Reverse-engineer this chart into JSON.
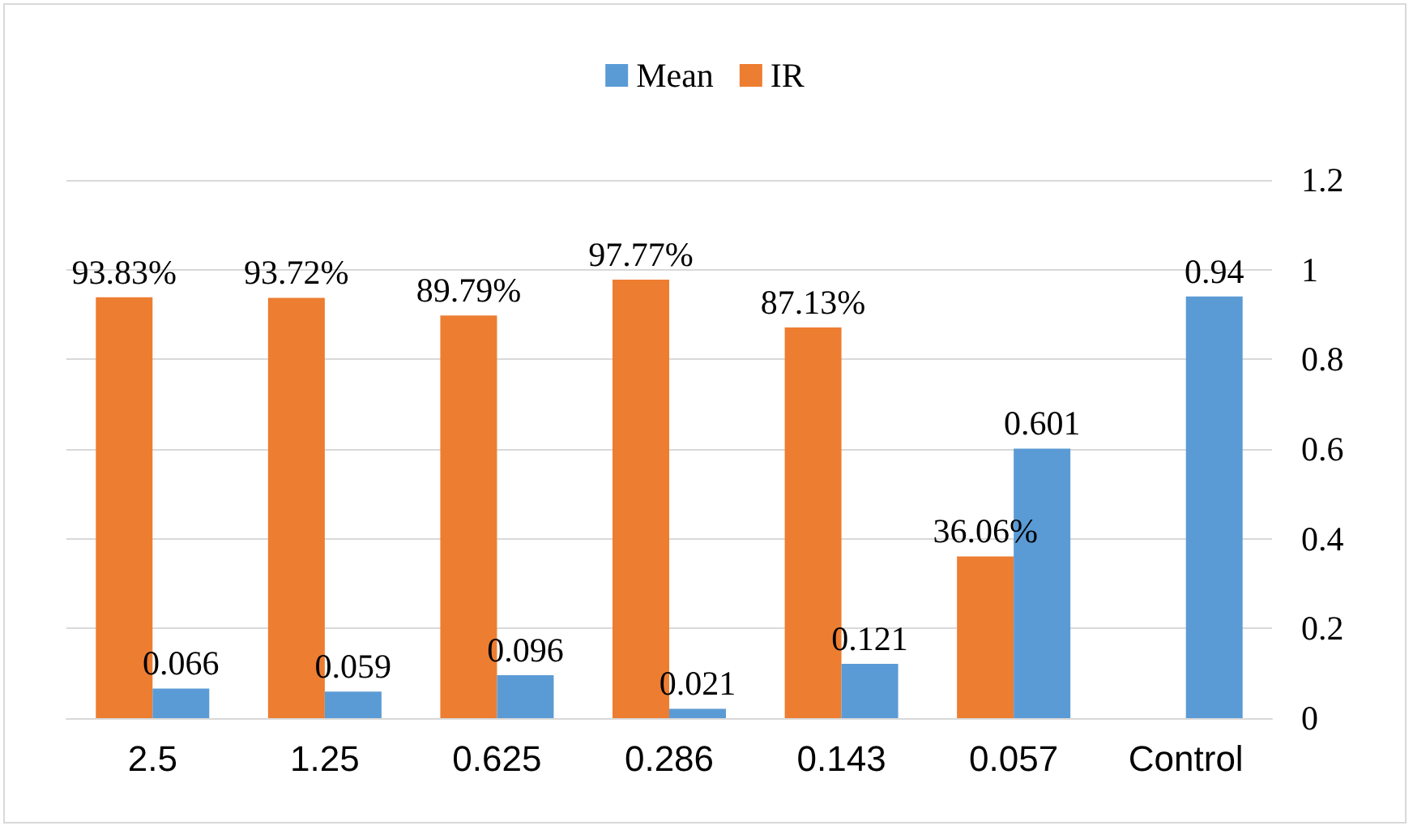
{
  "chart_data": {
    "type": "bar",
    "categories": [
      "2.5",
      "1.25",
      "0.625",
      "0.286",
      "0.143",
      "0.057",
      "Control"
    ],
    "series": [
      {
        "name": "Mean",
        "color": "#5b9bd5",
        "values": [
          0.066,
          0.059,
          0.096,
          0.021,
          0.121,
          0.601,
          0.94
        ],
        "value_labels": [
          "0.066",
          "0.059",
          "0.096",
          "0.021",
          "0.121",
          "0.601",
          "0.94"
        ]
      },
      {
        "name": "IR",
        "color": "#ed7d31",
        "values": [
          0.9383,
          0.9372,
          0.8979,
          0.9777,
          0.8713,
          0.3606,
          null
        ],
        "value_labels": [
          "93.83%",
          "93.72%",
          "89.79%",
          "97.77%",
          "87.13%",
          "36.06%",
          null
        ]
      }
    ],
    "ylim": [
      0,
      1.2
    ],
    "yticks": [
      0,
      0.2,
      0.4,
      0.6,
      0.8,
      1,
      1.2
    ],
    "grid": "y",
    "legend": "top"
  }
}
